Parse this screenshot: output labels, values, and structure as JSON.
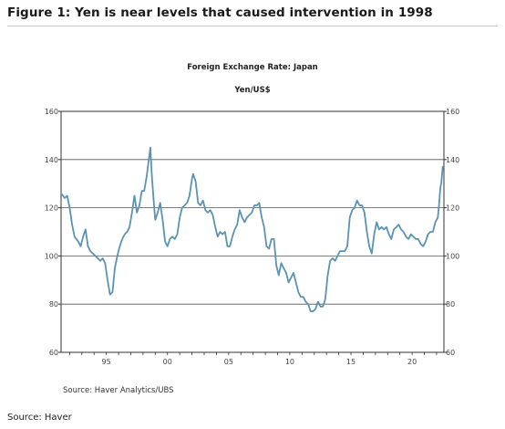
{
  "figure_title": "Figure 1: Yen is near levels that caused intervention in 1998",
  "footnote": "Source: Haver",
  "chart_data": {
    "type": "line",
    "title": "Foreign Exchange Rate: Japan",
    "subtitle": "Yen/US$",
    "source": "Source:  Haver Analytics/UBS",
    "xlabel": "",
    "ylabel": "",
    "xlim": [
      1991.3,
      2022.6
    ],
    "ylim": [
      60,
      160
    ],
    "y_ticks": [
      60,
      80,
      100,
      120,
      140,
      160
    ],
    "x_ticks": [
      {
        "value": 1995,
        "label": "95"
      },
      {
        "value": 2000,
        "label": "00"
      },
      {
        "value": 2005,
        "label": "05"
      },
      {
        "value": 2010,
        "label": "10"
      },
      {
        "value": 2015,
        "label": "15"
      },
      {
        "value": 2020,
        "label": "20"
      }
    ],
    "grid": "horizontal at 80, 100, 120, 140",
    "series_color": "#5b93b3",
    "series": [
      {
        "name": "",
        "values": [
          [
            1991.3,
            126
          ],
          [
            1991.6,
            124
          ],
          [
            1991.8,
            125
          ],
          [
            1992.0,
            120
          ],
          [
            1992.2,
            113
          ],
          [
            1992.4,
            108
          ],
          [
            1992.7,
            106
          ],
          [
            1992.9,
            104
          ],
          [
            1993.1,
            108
          ],
          [
            1993.3,
            111
          ],
          [
            1993.5,
            104
          ],
          [
            1993.7,
            102
          ],
          [
            1993.9,
            101
          ],
          [
            1994.1,
            100
          ],
          [
            1994.3,
            99
          ],
          [
            1994.5,
            98
          ],
          [
            1994.7,
            99
          ],
          [
            1994.9,
            97
          ],
          [
            1995.1,
            90
          ],
          [
            1995.3,
            84
          ],
          [
            1995.5,
            85
          ],
          [
            1995.7,
            95
          ],
          [
            1995.9,
            100
          ],
          [
            1996.1,
            104
          ],
          [
            1996.3,
            107
          ],
          [
            1996.5,
            109
          ],
          [
            1996.7,
            110
          ],
          [
            1996.9,
            112
          ],
          [
            1997.1,
            118
          ],
          [
            1997.3,
            125
          ],
          [
            1997.5,
            118
          ],
          [
            1997.7,
            121
          ],
          [
            1997.9,
            127
          ],
          [
            1998.1,
            127
          ],
          [
            1998.3,
            133
          ],
          [
            1998.5,
            141
          ],
          [
            1998.6,
            145
          ],
          [
            1998.7,
            135
          ],
          [
            1998.8,
            128
          ],
          [
            1998.9,
            121
          ],
          [
            1999.0,
            115
          ],
          [
            1999.2,
            118
          ],
          [
            1999.4,
            122
          ],
          [
            1999.6,
            115
          ],
          [
            1999.8,
            106
          ],
          [
            2000.0,
            104
          ],
          [
            2000.2,
            107
          ],
          [
            2000.4,
            108
          ],
          [
            2000.6,
            107
          ],
          [
            2000.8,
            109
          ],
          [
            2001.0,
            116
          ],
          [
            2001.2,
            120
          ],
          [
            2001.4,
            121
          ],
          [
            2001.6,
            122
          ],
          [
            2001.8,
            125
          ],
          [
            2002.0,
            132
          ],
          [
            2002.1,
            134
          ],
          [
            2002.3,
            131
          ],
          [
            2002.5,
            122
          ],
          [
            2002.7,
            121
          ],
          [
            2002.9,
            123
          ],
          [
            2003.1,
            119
          ],
          [
            2003.3,
            118
          ],
          [
            2003.5,
            119
          ],
          [
            2003.7,
            117
          ],
          [
            2003.9,
            112
          ],
          [
            2004.1,
            108
          ],
          [
            2004.3,
            110
          ],
          [
            2004.5,
            109
          ],
          [
            2004.7,
            110
          ],
          [
            2004.9,
            104
          ],
          [
            2005.1,
            104
          ],
          [
            2005.3,
            108
          ],
          [
            2005.5,
            111
          ],
          [
            2005.7,
            113
          ],
          [
            2005.9,
            119
          ],
          [
            2006.1,
            116
          ],
          [
            2006.3,
            114
          ],
          [
            2006.5,
            116
          ],
          [
            2006.7,
            117
          ],
          [
            2006.9,
            118
          ],
          [
            2007.1,
            121
          ],
          [
            2007.3,
            121
          ],
          [
            2007.5,
            122
          ],
          [
            2007.7,
            116
          ],
          [
            2007.9,
            112
          ],
          [
            2008.1,
            104
          ],
          [
            2008.3,
            103
          ],
          [
            2008.5,
            107
          ],
          [
            2008.7,
            107
          ],
          [
            2008.9,
            96
          ],
          [
            2009.1,
            92
          ],
          [
            2009.3,
            97
          ],
          [
            2009.5,
            95
          ],
          [
            2009.7,
            93
          ],
          [
            2009.9,
            89
          ],
          [
            2010.1,
            91
          ],
          [
            2010.3,
            93
          ],
          [
            2010.5,
            89
          ],
          [
            2010.7,
            85
          ],
          [
            2010.9,
            83
          ],
          [
            2011.1,
            83
          ],
          [
            2011.3,
            81
          ],
          [
            2011.5,
            80
          ],
          [
            2011.7,
            77
          ],
          [
            2011.9,
            77
          ],
          [
            2012.1,
            78
          ],
          [
            2012.3,
            81
          ],
          [
            2012.5,
            79
          ],
          [
            2012.7,
            79
          ],
          [
            2012.9,
            82
          ],
          [
            2013.1,
            92
          ],
          [
            2013.3,
            98
          ],
          [
            2013.5,
            99
          ],
          [
            2013.7,
            98
          ],
          [
            2013.9,
            100
          ],
          [
            2014.1,
            102
          ],
          [
            2014.3,
            102
          ],
          [
            2014.5,
            102
          ],
          [
            2014.7,
            104
          ],
          [
            2014.9,
            116
          ],
          [
            2015.1,
            119
          ],
          [
            2015.3,
            120
          ],
          [
            2015.5,
            123
          ],
          [
            2015.7,
            121
          ],
          [
            2015.9,
            121
          ],
          [
            2016.1,
            118
          ],
          [
            2016.3,
            110
          ],
          [
            2016.5,
            104
          ],
          [
            2016.7,
            101
          ],
          [
            2016.9,
            109
          ],
          [
            2017.1,
            114
          ],
          [
            2017.3,
            111
          ],
          [
            2017.5,
            112
          ],
          [
            2017.7,
            111
          ],
          [
            2017.9,
            112
          ],
          [
            2018.1,
            109
          ],
          [
            2018.3,
            107
          ],
          [
            2018.5,
            111
          ],
          [
            2018.7,
            112
          ],
          [
            2018.9,
            113
          ],
          [
            2019.1,
            111
          ],
          [
            2019.3,
            110
          ],
          [
            2019.5,
            108
          ],
          [
            2019.7,
            107
          ],
          [
            2019.9,
            109
          ],
          [
            2020.1,
            108
          ],
          [
            2020.3,
            107
          ],
          [
            2020.5,
            107
          ],
          [
            2020.7,
            105
          ],
          [
            2020.9,
            104
          ],
          [
            2021.1,
            106
          ],
          [
            2021.3,
            109
          ],
          [
            2021.5,
            110
          ],
          [
            2021.7,
            110
          ],
          [
            2021.9,
            114
          ],
          [
            2022.1,
            116
          ],
          [
            2022.2,
            121
          ],
          [
            2022.3,
            128
          ],
          [
            2022.4,
            131
          ],
          [
            2022.5,
            137
          ],
          [
            2022.6,
            137
          ]
        ]
      }
    ]
  }
}
